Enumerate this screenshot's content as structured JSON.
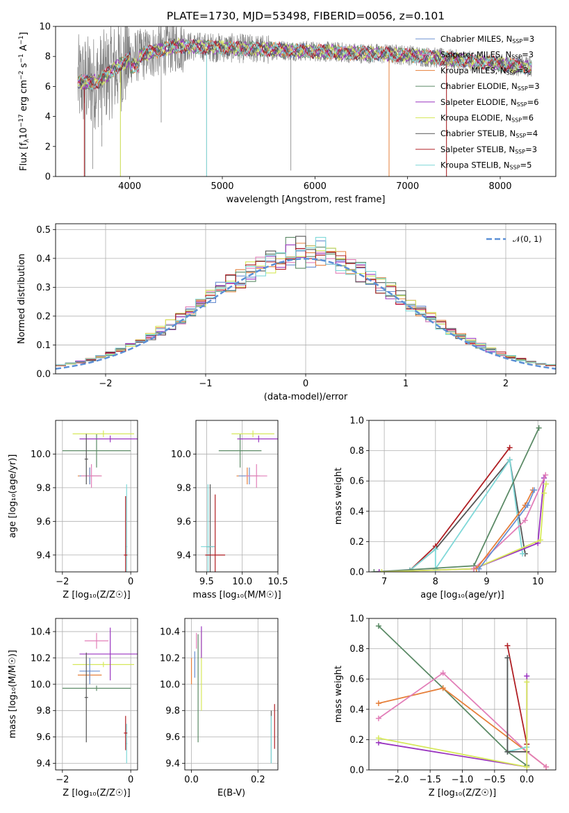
{
  "figure": {
    "title": "PLATE=1730, MJD=53498, FIBERID=0056, z=0.101"
  },
  "series": [
    {
      "key": "chabrier_miles",
      "label": "Chabrier MILES, N",
      "sub": "SSP",
      "suffix": "=3",
      "color": "#6a8fd1"
    },
    {
      "key": "salpeter_miles",
      "label": "Salpeter MILES, N",
      "sub": "SSP",
      "suffix": "=3",
      "color": "#e27eb8"
    },
    {
      "key": "kroupa_miles",
      "label": "Kroupa MILES, N",
      "sub": "SSP",
      "suffix": "=3",
      "color": "#e67f3a"
    },
    {
      "key": "chabrier_elodie",
      "label": "Chabrier ELODIE, N",
      "sub": "SSP",
      "suffix": "=3",
      "color": "#5b8a66"
    },
    {
      "key": "salpeter_elodie",
      "label": "Salpeter ELODIE, N",
      "sub": "SSP",
      "suffix": "=6",
      "color": "#9a35c0"
    },
    {
      "key": "kroupa_elodie",
      "label": "Kroupa ELODIE, N",
      "sub": "SSP",
      "suffix": "=6",
      "color": "#d6e85a"
    },
    {
      "key": "chabrier_stelib",
      "label": "Chabrier STELIB, N",
      "sub": "SSP",
      "suffix": "=4",
      "color": "#555555"
    },
    {
      "key": "salpeter_stelib",
      "label": "Salpeter STELIB, N",
      "sub": "SSP",
      "suffix": "=3",
      "color": "#b01f24"
    },
    {
      "key": "kroupa_stelib",
      "label": "Kroupa STELIB, N",
      "sub": "SSP",
      "suffix": "=5",
      "color": "#7fd8d8"
    }
  ],
  "chart_data": [
    {
      "id": "spectrum",
      "type": "line",
      "title": "PLATE=1730, MJD=53498, FIBERID=0056, z=0.101",
      "xlabel": "wavelength [Angstrom, rest frame]",
      "ylabel_parts": [
        "Flux [f",
        "λ",
        "10",
        "−17",
        " erg cm",
        "−2",
        " s",
        "−1",
        " A",
        "−1",
        "]"
      ],
      "xlim": [
        3200,
        8600
      ],
      "ylim": [
        0,
        10
      ],
      "xticks": [
        4000,
        5000,
        6000,
        7000,
        8000
      ],
      "yticks": [
        0,
        2,
        4,
        6,
        8,
        10
      ],
      "data_color": "#808080",
      "grid": false,
      "legend": "top-right"
    },
    {
      "id": "residual_hist",
      "type": "bar",
      "xlabel": "(data-model)/error",
      "ylabel": "Normed distribution",
      "xlim": [
        -2.5,
        2.5
      ],
      "ylim": [
        0,
        0.52
      ],
      "xticks": [
        -2,
        -1,
        0,
        1,
        2
      ],
      "yticks": [
        0.0,
        0.1,
        0.2,
        0.3,
        0.4,
        0.5
      ],
      "reference_label": "𝒩(0, 1)",
      "reference_color": "#5b8fd6",
      "grid": true,
      "legend": "top-right"
    },
    {
      "id": "age_vs_Z",
      "type": "scatter",
      "xlabel": "Z [log₁₀(Z/Z☉)]",
      "ylabel": "age  [log₁₀(age/yr)]",
      "xlim": [
        -2.2,
        0.2
      ],
      "ylim": [
        9.3,
        10.2
      ],
      "xticks": [
        -2,
        0
      ],
      "yticks": [
        9.4,
        9.6,
        9.8,
        10.0
      ],
      "grid": true,
      "points": [
        {
          "s": "chabrier_elodie",
          "x": -1.0,
          "xerr": 1.0,
          "y": 10.02,
          "yerr": 0.1
        },
        {
          "s": "kroupa_elodie",
          "x": -0.8,
          "xerr": 0.9,
          "y": 10.12,
          "yerr": 0.02
        },
        {
          "s": "salpeter_elodie",
          "x": -0.6,
          "xerr": 0.9,
          "y": 10.09,
          "yerr": 0.02
        },
        {
          "s": "kroupa_miles",
          "x": -1.2,
          "xerr": 0.35,
          "y": 9.87,
          "yerr": 0.05
        },
        {
          "s": "chabrier_miles",
          "x": -1.2,
          "xerr": 0.3,
          "y": 9.87,
          "yerr": 0.05
        },
        {
          "s": "salpeter_miles",
          "x": -1.15,
          "xerr": 0.3,
          "y": 9.87,
          "yerr": 0.07
        },
        {
          "s": "chabrier_stelib",
          "x": -1.3,
          "xerr": 0.05,
          "y": 9.97,
          "yerr": 0.15
        },
        {
          "s": "kroupa_stelib",
          "x": -0.12,
          "xerr": 0.02,
          "y": 9.45,
          "yerr": 0.37
        },
        {
          "s": "salpeter_stelib",
          "x": -0.15,
          "xerr": 0.05,
          "y": 9.4,
          "yerr": 0.35
        }
      ]
    },
    {
      "id": "age_vs_mass",
      "type": "scatter",
      "xlabel": "mass [log₁₀(M/M☉)]",
      "ylabel": "",
      "xlim": [
        9.35,
        10.5
      ],
      "ylim": [
        9.3,
        10.2
      ],
      "xticks": [
        9.5,
        10.0,
        10.5
      ],
      "yticks": [
        9.4,
        9.6,
        9.8,
        10.0
      ],
      "grid": true,
      "points": [
        {
          "s": "chabrier_elodie",
          "x": 9.97,
          "xerr": 0.3,
          "y": 10.02,
          "yerr": 0.1
        },
        {
          "s": "kroupa_elodie",
          "x": 10.15,
          "xerr": 0.3,
          "y": 10.12,
          "yerr": 0.02
        },
        {
          "s": "salpeter_elodie",
          "x": 10.23,
          "xerr": 0.3,
          "y": 10.09,
          "yerr": 0.02
        },
        {
          "s": "kroupa_miles",
          "x": 10.07,
          "xerr": 0.15,
          "y": 9.87,
          "yerr": 0.05
        },
        {
          "s": "chabrier_miles",
          "x": 10.1,
          "xerr": 0.15,
          "y": 9.87,
          "yerr": 0.05
        },
        {
          "s": "salpeter_miles",
          "x": 10.2,
          "xerr": 0.15,
          "y": 9.87,
          "yerr": 0.07
        },
        {
          "s": "chabrier_stelib",
          "x": 9.55,
          "xerr": 0.05,
          "y": 9.45,
          "yerr": 0.37
        },
        {
          "s": "kroupa_stelib",
          "x": 9.52,
          "xerr": 0.1,
          "y": 9.45,
          "yerr": 0.37
        },
        {
          "s": "salpeter_stelib",
          "x": 9.62,
          "xerr": 0.14,
          "y": 9.4,
          "yerr": 0.36
        }
      ]
    },
    {
      "id": "mass_weight_vs_age",
      "type": "line",
      "xlabel": "age  [log₁₀(age/yr)]",
      "ylabel": "mass weight",
      "xlim": [
        6.7,
        10.35
      ],
      "ylim": [
        0,
        1
      ],
      "xticks": [
        7,
        8,
        9,
        10
      ],
      "yticks": [
        0.0,
        0.2,
        0.4,
        0.6,
        0.8,
        1.0
      ],
      "grid": true,
      "lines": [
        {
          "s": "salpeter_stelib",
          "x": [
            7.5,
            8.0,
            9.45
          ],
          "y": [
            0.01,
            0.17,
            0.82
          ]
        },
        {
          "s": "chabrier_stelib",
          "x": [
            7.5,
            8.0,
            9.45,
            9.75
          ],
          "y": [
            0.01,
            0.15,
            0.74,
            0.12
          ]
        },
        {
          "s": "kroupa_stelib",
          "x": [
            7.5,
            8.0,
            8.0,
            9.45,
            9.7
          ],
          "y": [
            0.01,
            0.15,
            0.02,
            0.74,
            0.12
          ]
        },
        {
          "s": "chabrier_elodie",
          "x": [
            6.8,
            8.75,
            10.02
          ],
          "y": [
            0.0,
            0.04,
            0.95
          ]
        },
        {
          "s": "salpeter_elodie",
          "x": [
            6.9,
            8.75,
            10.0,
            10.12
          ],
          "y": [
            0.0,
            0.02,
            0.19,
            0.62
          ]
        },
        {
          "s": "kroupa_elodie",
          "x": [
            6.95,
            8.75,
            10.05,
            10.12,
            10.16
          ],
          "y": [
            0.0,
            0.02,
            0.21,
            0.52,
            0.58
          ]
        },
        {
          "s": "salpeter_miles",
          "x": [
            8.75,
            9.75,
            10.15
          ],
          "y": [
            0.02,
            0.34,
            0.64
          ]
        },
        {
          "s": "kroupa_miles",
          "x": [
            8.8,
            9.75,
            9.9
          ],
          "y": [
            0.02,
            0.44,
            0.54
          ]
        },
        {
          "s": "chabrier_miles",
          "x": [
            8.85,
            9.8,
            9.93
          ],
          "y": [
            0.02,
            0.44,
            0.54
          ]
        }
      ]
    },
    {
      "id": "mass_vs_Z",
      "type": "scatter",
      "xlabel": "Z [log₁₀(Z/Z☉)]",
      "ylabel": "mass [log₁₀(M/M☉)]",
      "xlim": [
        -2.2,
        0.2
      ],
      "ylim": [
        9.35,
        10.5
      ],
      "xticks": [
        -2,
        0
      ],
      "yticks": [
        9.4,
        9.6,
        9.8,
        10.0,
        10.2,
        10.4
      ],
      "grid": true,
      "points": [
        {
          "s": "chabrier_elodie",
          "x": -1.0,
          "xerr": 1.0,
          "y": 9.97,
          "yerr": 0.02
        },
        {
          "s": "kroupa_elodie",
          "x": -0.8,
          "xerr": 0.9,
          "y": 10.15,
          "yerr": 0.02
        },
        {
          "s": "salpeter_elodie",
          "x": -0.6,
          "xerr": 0.9,
          "y": 10.23,
          "yerr": 0.2
        },
        {
          "s": "kroupa_miles",
          "x": -1.2,
          "xerr": 0.35,
          "y": 10.07,
          "yerr": 0.04
        },
        {
          "s": "chabrier_miles",
          "x": -1.2,
          "xerr": 0.3,
          "y": 10.1,
          "yerr": 0.1
        },
        {
          "s": "salpeter_miles",
          "x": -1.0,
          "xerr": 0.35,
          "y": 10.33,
          "yerr": 0.06
        },
        {
          "s": "chabrier_stelib",
          "x": -1.3,
          "xerr": 0.05,
          "y": 9.9,
          "yerr": 0.34
        },
        {
          "s": "kroupa_stelib",
          "x": -0.12,
          "xerr": 0.02,
          "y": 9.55,
          "yerr": 0.15
        },
        {
          "s": "salpeter_stelib",
          "x": -0.15,
          "xerr": 0.05,
          "y": 9.63,
          "yerr": 0.13
        }
      ]
    },
    {
      "id": "mass_vs_ebv",
      "type": "scatter",
      "xlabel": "E(B-V)",
      "ylabel": "",
      "xlim": [
        -0.02,
        0.26
      ],
      "ylim": [
        9.35,
        10.5
      ],
      "xticks": [
        0.0,
        0.2
      ],
      "yticks": [
        9.4,
        9.6,
        9.8,
        10.0,
        10.2,
        10.4
      ],
      "grid": true,
      "points": [
        {
          "s": "chabrier_elodie",
          "x": 0.02,
          "xerr": 0.0,
          "y": 9.97,
          "yerr": 0.41
        },
        {
          "s": "kroupa_elodie",
          "x": 0.03,
          "xerr": 0.0,
          "y": 10.1,
          "yerr": 0.3
        },
        {
          "s": "salpeter_elodie",
          "x": 0.03,
          "xerr": 0.0,
          "y": 10.32,
          "yerr": 0.12
        },
        {
          "s": "kroupa_miles",
          "x": 0.0,
          "xerr": 0.0,
          "y": 10.1,
          "yerr": 0.1
        },
        {
          "s": "chabrier_miles",
          "x": 0.01,
          "xerr": 0.0,
          "y": 10.15,
          "yerr": 0.1
        },
        {
          "s": "salpeter_miles",
          "x": 0.015,
          "xerr": 0.0,
          "y": 10.33,
          "yerr": 0.06
        },
        {
          "s": "chabrier_stelib",
          "x": 0.24,
          "xerr": 0.0,
          "y": 9.6,
          "yerr": 0.2
        },
        {
          "s": "kroupa_stelib",
          "x": 0.24,
          "xerr": 0.0,
          "y": 9.58,
          "yerr": 0.18
        },
        {
          "s": "salpeter_stelib",
          "x": 0.25,
          "xerr": 0.0,
          "y": 9.68,
          "yerr": 0.17
        }
      ]
    },
    {
      "id": "mass_weight_vs_Z",
      "type": "line",
      "xlabel": "Z [log₁₀(Z/Z☉)]",
      "ylabel": "mass weight",
      "xlim": [
        -2.45,
        0.45
      ],
      "ylim": [
        0,
        1
      ],
      "xticks": [
        -2.0,
        -1.5,
        -1.0,
        -0.5,
        0.0
      ],
      "yticks": [
        0.0,
        0.2,
        0.4,
        0.6,
        0.8,
        1.0
      ],
      "grid": true,
      "lines": [
        {
          "s": "chabrier_elodie",
          "x": [
            -2.3,
            -1.3,
            -0.3,
            0.0
          ],
          "y": [
            0.95,
            0.54,
            0.12,
            0.03
          ]
        },
        {
          "s": "kroupa_miles",
          "x": [
            -2.3,
            -1.3,
            0.0,
            0.3
          ],
          "y": [
            0.44,
            0.54,
            0.12,
            0.02
          ]
        },
        {
          "s": "salpeter_miles",
          "x": [
            -2.3,
            -1.3,
            0.0,
            0.3
          ],
          "y": [
            0.34,
            0.64,
            0.12,
            0.02
          ]
        },
        {
          "s": "salpeter_stelib",
          "x": [
            -0.3,
            0.0
          ],
          "y": [
            0.82,
            0.17
          ]
        },
        {
          "s": "kroupa_stelib",
          "x": [
            -0.3,
            -0.3,
            0.0
          ],
          "y": [
            0.74,
            0.12,
            0.15
          ]
        },
        {
          "s": "chabrier_stelib",
          "x": [
            -0.3,
            -0.3,
            0.0
          ],
          "y": [
            0.74,
            0.12,
            0.12
          ]
        },
        {
          "s": "salpeter_elodie",
          "x": [
            -2.3,
            0.0,
            0.0
          ],
          "y": [
            0.18,
            0.02,
            0.62
          ]
        },
        {
          "s": "kroupa_elodie",
          "x": [
            -2.3,
            0.0,
            0.0
          ],
          "y": [
            0.21,
            0.02,
            0.58
          ]
        }
      ]
    }
  ]
}
